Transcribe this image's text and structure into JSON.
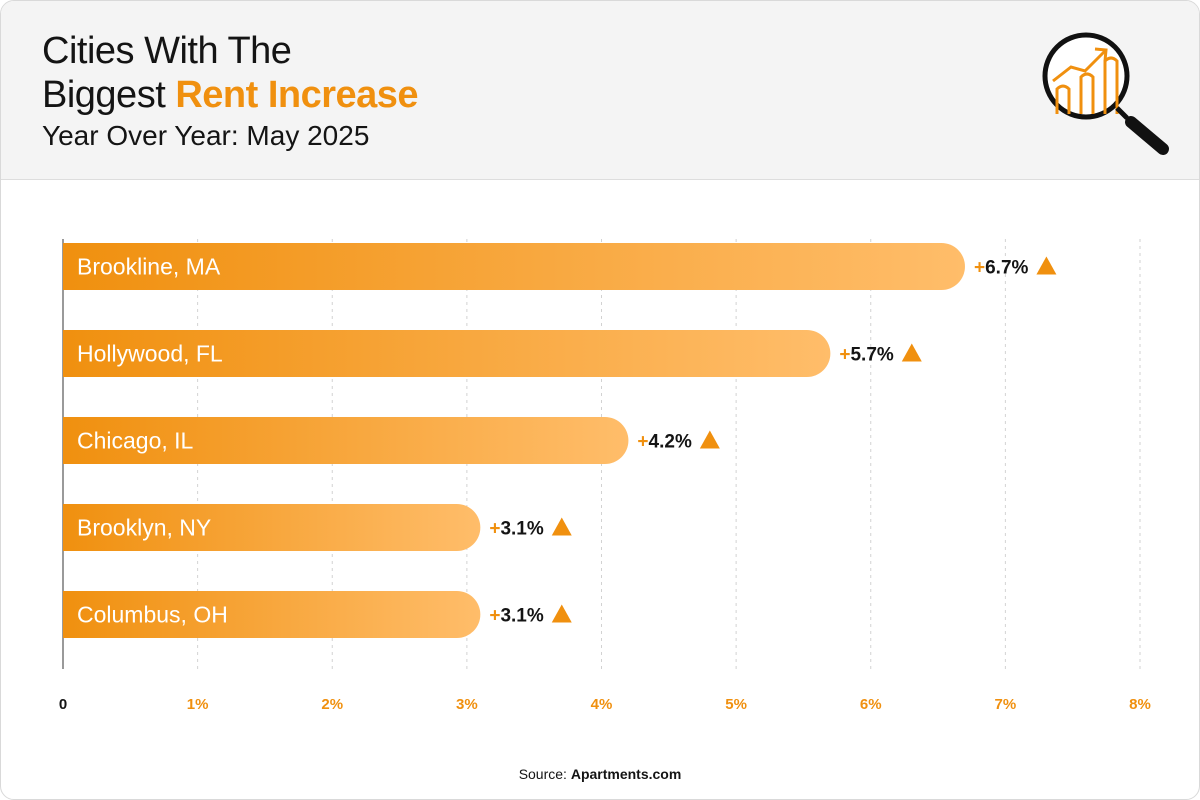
{
  "header": {
    "title_line1": "Cities With The",
    "title_line2_prefix": "Biggest ",
    "title_line2_accent": "Rent Increase",
    "subtitle": "Year Over Year: May 2025"
  },
  "footer": {
    "source_prefix": "Source: ",
    "source_name": "Apartments.com"
  },
  "colors": {
    "accent": "#f0900f",
    "bar_start": "#f0900f",
    "bar_end": "#ffbd6a",
    "text_dark": "#141414"
  },
  "chart_data": {
    "type": "bar",
    "orientation": "horizontal",
    "categories": [
      "Brookline, MA",
      "Hollywood, FL",
      "Chicago, IL",
      "Brooklyn, NY",
      "Columbus, OH"
    ],
    "values": [
      6.7,
      5.7,
      4.2,
      3.1,
      3.1
    ],
    "value_labels": [
      "+6.7%",
      "+5.7%",
      "+4.2%",
      "+3.1%",
      "+3.1%"
    ],
    "xlim": [
      0,
      8
    ],
    "xticks": [
      0,
      1,
      2,
      3,
      4,
      5,
      6,
      7,
      8
    ],
    "xtick_labels": [
      "0",
      "1%",
      "2%",
      "3%",
      "4%",
      "5%",
      "6%",
      "7%",
      "8%"
    ],
    "grid": "vertical dotted",
    "title": "",
    "xlabel": "",
    "ylabel": ""
  }
}
